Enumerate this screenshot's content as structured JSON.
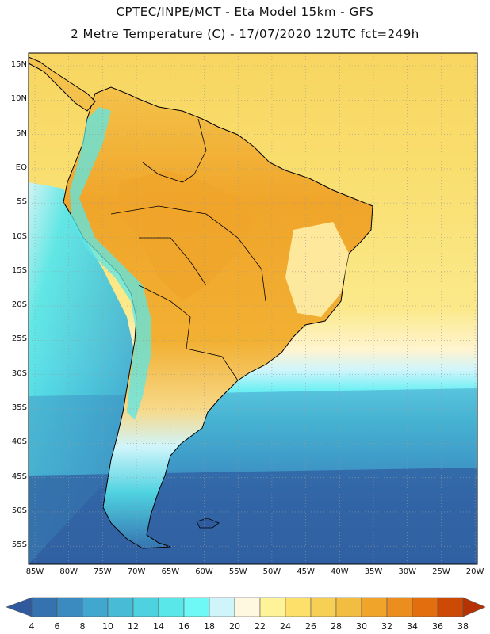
{
  "header": {
    "line1": "CPTEC/INPE/MCT -  Eta Model 15km - GFS",
    "line2": "2 Metre Temperature (C) - 17/07/2020 12UTC fct=249h"
  },
  "lat_labels": [
    "15N",
    "10N",
    "5N",
    "EQ",
    "5S",
    "10S",
    "15S",
    "20S",
    "25S",
    "30S",
    "35S",
    "40S",
    "45S",
    "50S",
    "55S"
  ],
  "lon_labels": [
    "85W",
    "80W",
    "75W",
    "70W",
    "65W",
    "60W",
    "55W",
    "50W",
    "45W",
    "40W",
    "35W",
    "30W",
    "25W",
    "20W"
  ],
  "colorbar": {
    "labels": [
      "4",
      "6",
      "8",
      "10",
      "12",
      "14",
      "16",
      "18",
      "20",
      "22",
      "24",
      "26",
      "28",
      "30",
      "32",
      "34",
      "36",
      "38"
    ],
    "colors": [
      "#2f5a9e",
      "#3573b0",
      "#3b8bc0",
      "#42a7ce",
      "#48bcd6",
      "#4fd2e0",
      "#5ae7ea",
      "#6ef8f6",
      "#cff5fb",
      "#fff8e0",
      "#fff39a",
      "#fde06a",
      "#f7cf55",
      "#f2bd41",
      "#f0a52a",
      "#ec8e1f",
      "#e26e0e",
      "#cc4a06",
      "#b53204"
    ]
  },
  "colors": {
    "ocean_warm": "#f8d965",
    "land_hot": "#f0a52a",
    "grid": "#9a9a9a",
    "coast": "#000000"
  }
}
